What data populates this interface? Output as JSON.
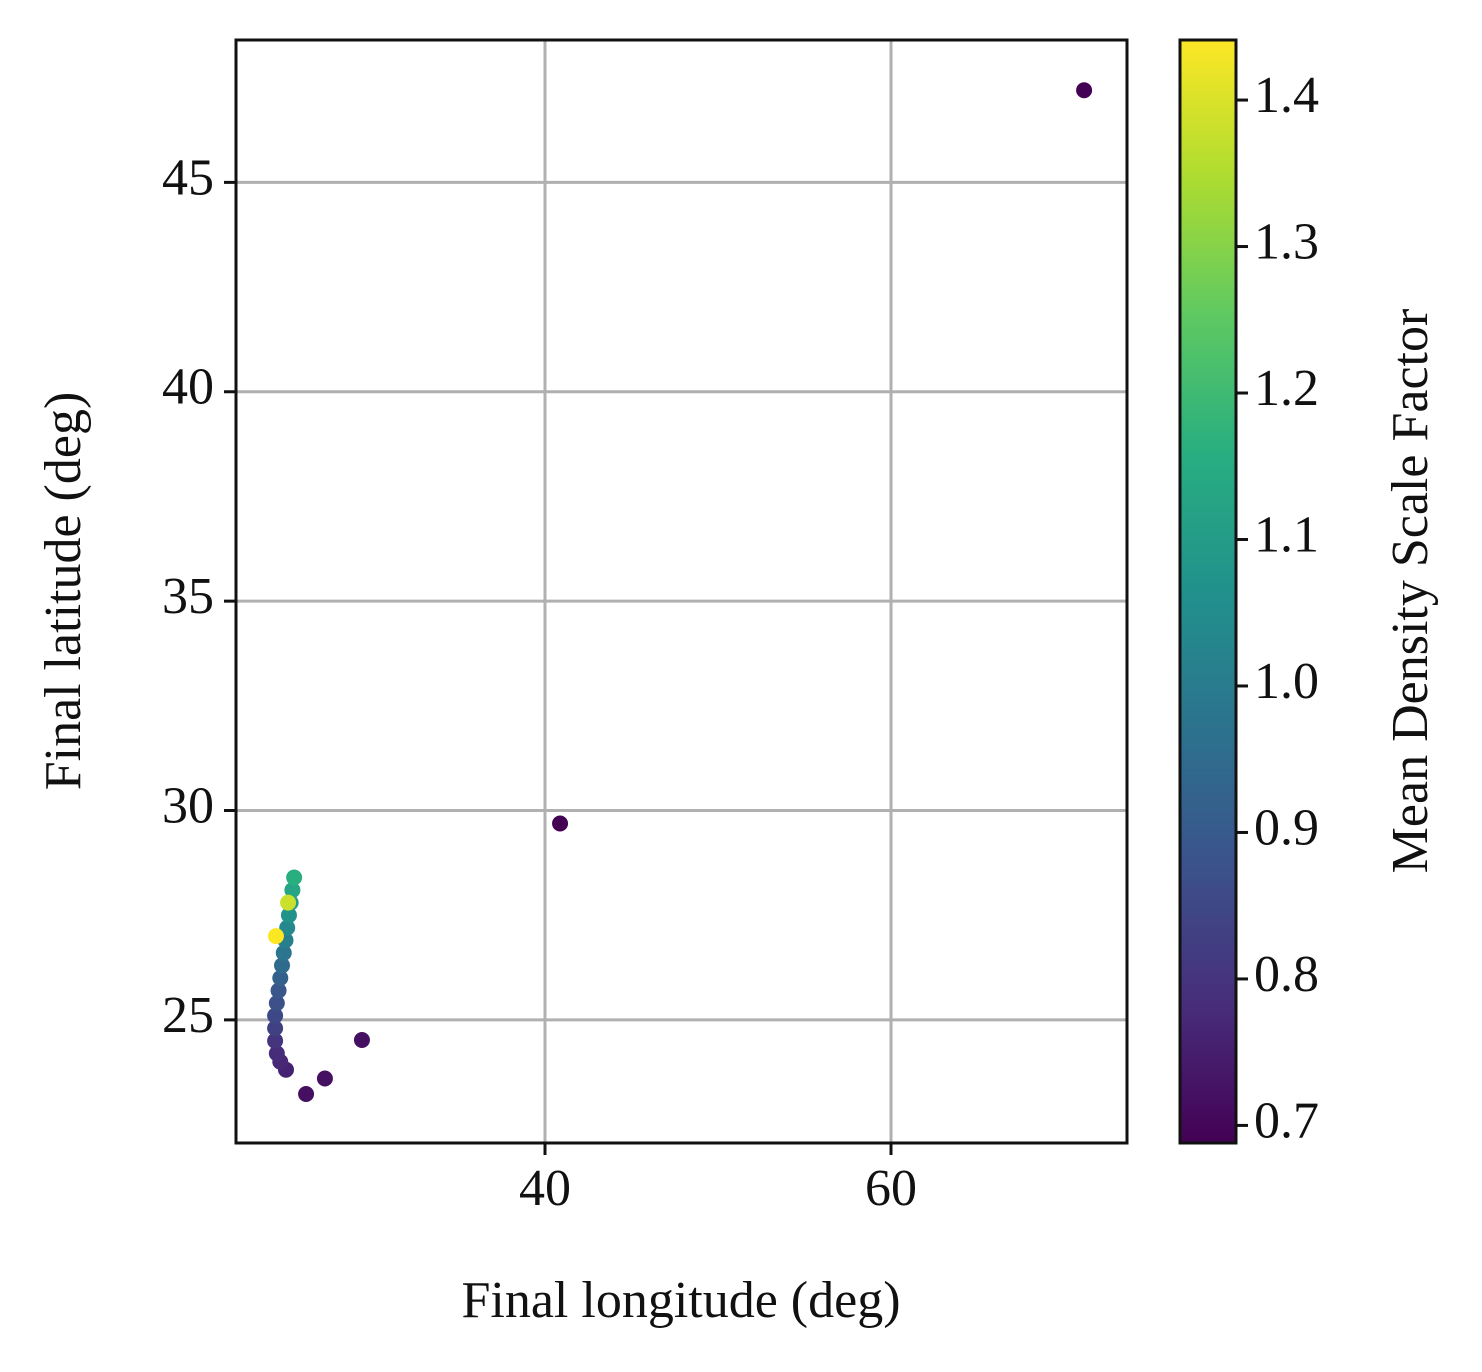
{
  "chart_data": {
    "type": "scatter",
    "x_label": "Final longitude (deg)",
    "y_label": "Final latitude (deg)",
    "colorbar_label": "Mean Density Scale Factor",
    "colormap": "viridis",
    "grid": true,
    "xlim": [
      22.14,
      73.64
    ],
    "xticks": [
      40,
      60
    ],
    "ylim": [
      22.06,
      48.4
    ],
    "yticks": [
      25,
      30,
      35,
      40,
      45
    ],
    "clim": [
      0.688,
      1.441
    ],
    "cticks": [
      0.7,
      0.8,
      0.9,
      {
        "value": 1,
        "label": "1.0"
      },
      1.1,
      1.2,
      1.3,
      1.4
    ],
    "x": [
      71.16,
      40.87,
      29.42,
      27.28,
      26.19,
      25.03,
      24.7,
      24.5,
      24.4,
      24.4,
      24.4,
      24.5,
      24.6,
      24.7,
      24.8,
      24.9,
      25.0,
      25.1,
      25.2,
      25.3,
      25.4,
      25.5,
      24.45,
      25.15
    ],
    "y": [
      47.2,
      29.69,
      24.52,
      23.6,
      23.23,
      23.81,
      24.0,
      24.2,
      24.5,
      24.8,
      25.1,
      25.4,
      25.7,
      26.0,
      26.3,
      26.6,
      26.9,
      27.2,
      27.5,
      27.8,
      28.1,
      28.4,
      27.0,
      27.8
    ],
    "color_values": [
      0.69,
      0.69,
      0.72,
      0.72,
      0.72,
      0.76,
      0.77,
      0.78,
      0.8,
      0.83,
      0.85,
      0.87,
      0.89,
      0.92,
      0.95,
      0.98,
      1.01,
      1.04,
      1.07,
      1.1,
      1.13,
      1.16,
      1.44,
      1.38
    ]
  }
}
